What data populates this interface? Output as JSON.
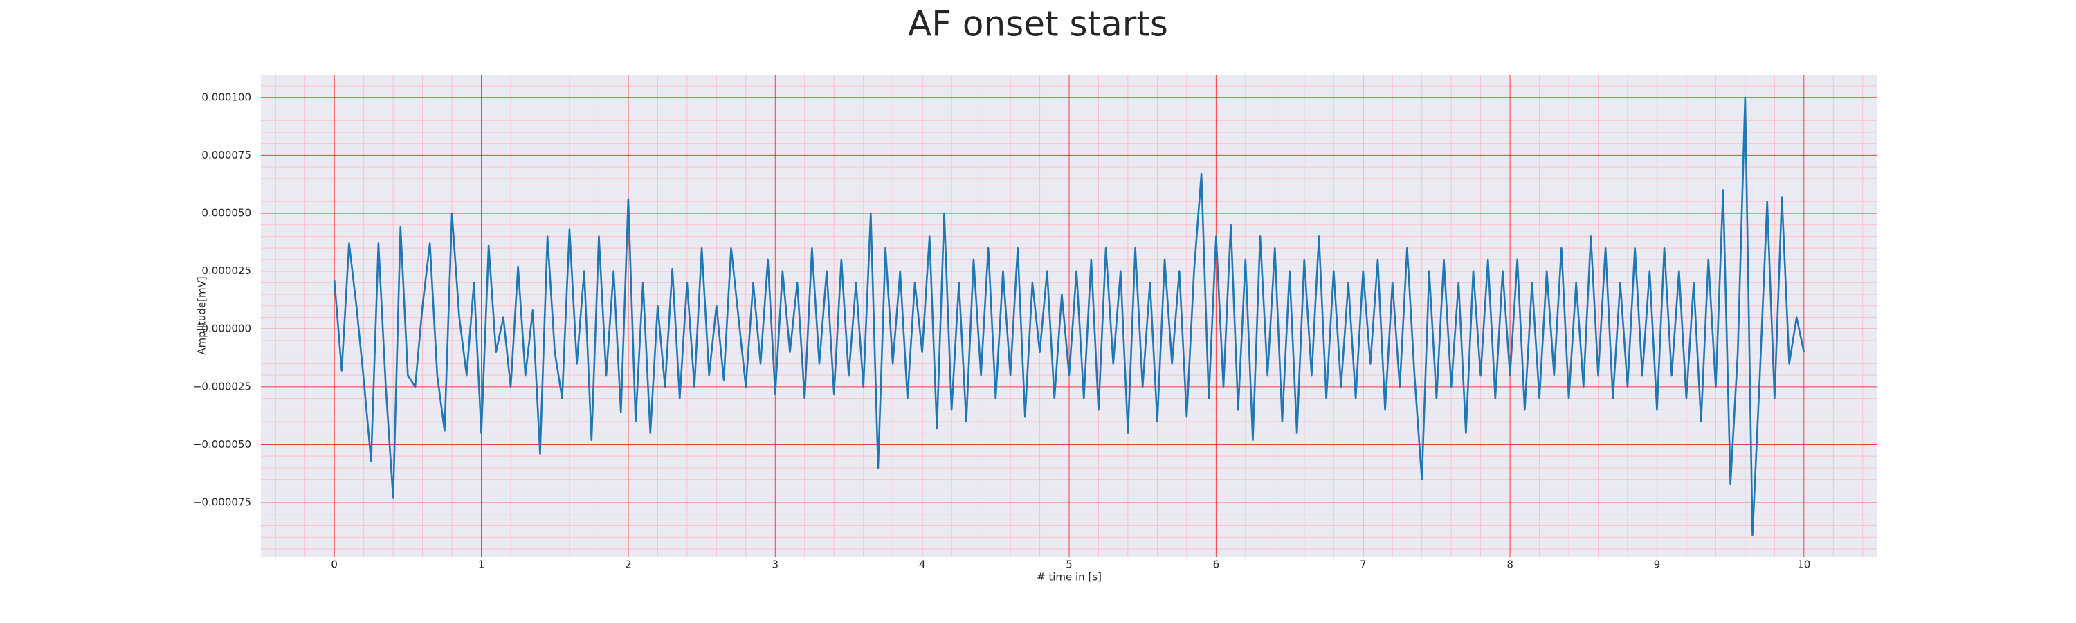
{
  "chart_data": {
    "type": "line",
    "title": "AF onset starts",
    "xlabel": "# time in [s]",
    "ylabel": "Amplitude[mV]",
    "color": "#1f77b4",
    "grid": true,
    "minor_grid": true,
    "xlim": [
      -0.5,
      10.5
    ],
    "ylim": [
      -9.83e-05,
      0.0001098
    ],
    "xticks": [
      0,
      1,
      2,
      3,
      4,
      5,
      6,
      7,
      8,
      9,
      10
    ],
    "yticks": [
      {
        "value": -7.5e-05,
        "label": "−0.000075"
      },
      {
        "value": -5e-05,
        "label": "−0.000050"
      },
      {
        "value": -2.5e-05,
        "label": "−0.000025"
      },
      {
        "value": 0,
        "label": "0.000000"
      },
      {
        "value": 2.5e-05,
        "label": "0.000025"
      },
      {
        "value": 5e-05,
        "label": "0.000050"
      },
      {
        "value": 7.5e-05,
        "label": "0.000075"
      },
      {
        "value": 0.0001,
        "label": "0.000100"
      }
    ],
    "x": [
      0,
      0.05,
      0.1,
      0.15,
      0.2,
      0.25,
      0.3,
      0.35,
      0.4,
      0.45,
      0.5,
      0.55,
      0.6,
      0.65,
      0.7,
      0.75,
      0.8,
      0.85,
      0.9,
      0.95,
      1,
      1.05,
      1.1,
      1.15,
      1.2,
      1.25,
      1.3,
      1.35,
      1.4,
      1.45,
      1.5,
      1.55,
      1.6,
      1.65,
      1.7,
      1.75,
      1.8,
      1.85,
      1.9,
      1.95,
      2,
      2.05,
      2.1,
      2.15,
      2.2,
      2.25,
      2.3,
      2.35,
      2.4,
      2.45,
      2.5,
      2.55,
      2.6,
      2.65,
      2.7,
      2.75,
      2.8,
      2.85,
      2.9,
      2.95,
      3,
      3.05,
      3.1,
      3.15,
      3.2,
      3.25,
      3.3,
      3.35,
      3.4,
      3.45,
      3.5,
      3.55,
      3.6,
      3.65,
      3.7,
      3.75,
      3.8,
      3.85,
      3.9,
      3.95,
      4,
      4.05,
      4.1,
      4.15,
      4.2,
      4.25,
      4.3,
      4.35,
      4.4,
      4.45,
      4.5,
      4.55,
      4.6,
      4.65,
      4.7,
      4.75,
      4.8,
      4.85,
      4.9,
      4.95,
      5,
      5.05,
      5.1,
      5.15,
      5.2,
      5.25,
      5.3,
      5.35,
      5.4,
      5.45,
      5.5,
      5.55,
      5.6,
      5.65,
      5.7,
      5.75,
      5.8,
      5.85,
      5.9,
      5.95,
      6,
      6.05,
      6.1,
      6.15,
      6.2,
      6.25,
      6.3,
      6.35,
      6.4,
      6.45,
      6.5,
      6.55,
      6.6,
      6.65,
      6.7,
      6.75,
      6.8,
      6.85,
      6.9,
      6.95,
      7,
      7.05,
      7.1,
      7.15,
      7.2,
      7.25,
      7.3,
      7.35,
      7.4,
      7.45,
      7.5,
      7.55,
      7.6,
      7.65,
      7.7,
      7.75,
      7.8,
      7.85,
      7.9,
      7.95,
      8,
      8.05,
      8.1,
      8.15,
      8.2,
      8.25,
      8.3,
      8.35,
      8.4,
      8.45,
      8.5,
      8.55,
      8.6,
      8.65,
      8.7,
      8.75,
      8.8,
      8.85,
      8.9,
      8.95,
      9,
      9.05,
      9.1,
      9.15,
      9.2,
      9.25,
      9.3,
      9.35,
      9.4,
      9.45,
      9.5,
      9.55,
      9.6,
      9.65,
      9.7,
      9.75,
      9.8,
      9.85,
      9.9,
      9.95,
      10
    ],
    "values": [
      2.1e-05,
      -1.8e-05,
      3.7e-05,
      1e-05,
      -2.2e-05,
      -5.7e-05,
      3.7e-05,
      -2.5e-05,
      -7.3e-05,
      4.4e-05,
      -2e-05,
      -2.5e-05,
      1e-05,
      3.7e-05,
      -2e-05,
      -4.4e-05,
      5e-05,
      5e-06,
      -2e-05,
      2e-05,
      -4.5e-05,
      3.6e-05,
      -1e-05,
      5e-06,
      -2.5e-05,
      2.7e-05,
      -2e-05,
      8e-06,
      -5.4e-05,
      4e-05,
      -1e-05,
      -3e-05,
      4.3e-05,
      -1.5e-05,
      2.5e-05,
      -4.8e-05,
      4e-05,
      -2e-05,
      2.5e-05,
      -3.6e-05,
      5.6e-05,
      -4e-05,
      2e-05,
      -4.5e-05,
      1e-05,
      -2.5e-05,
      2.6e-05,
      -3e-05,
      2e-05,
      -2.5e-05,
      3.5e-05,
      -2e-05,
      1e-05,
      -2.2e-05,
      3.5e-05,
      5e-06,
      -2.5e-05,
      2e-05,
      -1.5e-05,
      3e-05,
      -2.8e-05,
      2.5e-05,
      -1e-05,
      2e-05,
      -3e-05,
      3.5e-05,
      -1.5e-05,
      2.5e-05,
      -2.8e-05,
      3e-05,
      -2e-05,
      2e-05,
      -2.5e-05,
      5e-05,
      -6e-05,
      3.5e-05,
      -1.5e-05,
      2.5e-05,
      -3e-05,
      2e-05,
      -1e-05,
      4e-05,
      -4.3e-05,
      5e-05,
      -3.5e-05,
      2e-05,
      -4e-05,
      3e-05,
      -2e-05,
      3.5e-05,
      -3e-05,
      2.5e-05,
      -2e-05,
      3.5e-05,
      -3.8e-05,
      2e-05,
      -1e-05,
      2.5e-05,
      -3e-05,
      1.5e-05,
      -2e-05,
      2.5e-05,
      -3e-05,
      3e-05,
      -3.5e-05,
      3.5e-05,
      -1.5e-05,
      2.5e-05,
      -4.5e-05,
      3.5e-05,
      -2.5e-05,
      2e-05,
      -4e-05,
      3e-05,
      -1.5e-05,
      2.5e-05,
      -3.8e-05,
      2.5e-05,
      6.7e-05,
      -3e-05,
      4e-05,
      -2.5e-05,
      4.5e-05,
      -3.5e-05,
      3e-05,
      -4.8e-05,
      4e-05,
      -2e-05,
      3.5e-05,
      -4e-05,
      2.5e-05,
      -4.5e-05,
      3e-05,
      -2e-05,
      4e-05,
      -3e-05,
      2.5e-05,
      -2.5e-05,
      2e-05,
      -3e-05,
      2.5e-05,
      -1.5e-05,
      3e-05,
      -3.5e-05,
      2e-05,
      -2.5e-05,
      3.5e-05,
      -2e-05,
      -6.5e-05,
      2.5e-05,
      -3e-05,
      3e-05,
      -2.5e-05,
      2e-05,
      -4.5e-05,
      2.5e-05,
      -2e-05,
      3e-05,
      -3e-05,
      2.5e-05,
      -2e-05,
      3e-05,
      -3.5e-05,
      2e-05,
      -3e-05,
      2.5e-05,
      -2e-05,
      3.5e-05,
      -3e-05,
      2e-05,
      -2.5e-05,
      4e-05,
      -2e-05,
      3.5e-05,
      -3e-05,
      2e-05,
      -2.5e-05,
      3.5e-05,
      -2e-05,
      2.5e-05,
      -3.5e-05,
      3.5e-05,
      -2e-05,
      2.5e-05,
      -3e-05,
      2e-05,
      -4e-05,
      3e-05,
      -2.5e-05,
      6e-05,
      -6.7e-05,
      -1e-05,
      0.0001,
      -8.9e-05,
      -2e-05,
      5.5e-05,
      -3e-05,
      5.7e-05,
      -1.5e-05,
      5e-06,
      -1e-05
    ]
  }
}
